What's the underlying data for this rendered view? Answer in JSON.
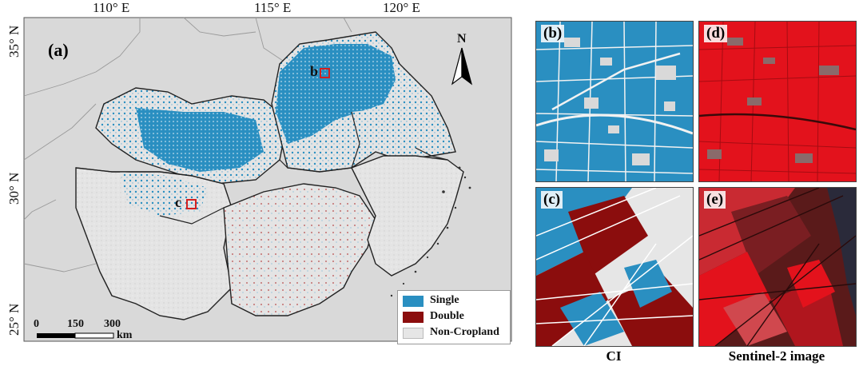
{
  "main_map": {
    "label": "(a)",
    "longitude_labels": [
      "110° E",
      "115° E",
      "120° E"
    ],
    "latitude_labels": [
      "35° N",
      "30° N",
      "25° N"
    ],
    "north_arrow_label": "N",
    "site_labels": [
      "b",
      "c"
    ],
    "legend": [
      {
        "label": "Single",
        "color": "#2a8fc1"
      },
      {
        "label": "Double",
        "color": "#8b0d0d"
      },
      {
        "label": "Non-Cropland",
        "color": "#e6e6e6"
      }
    ],
    "scale_bar": {
      "ticks": [
        "0",
        "150",
        "300"
      ],
      "unit": "km"
    }
  },
  "panels": [
    {
      "label": "(b)",
      "theme": "CI single cropping"
    },
    {
      "label": "(c)",
      "theme": "CI double cropping"
    },
    {
      "label": "(d)",
      "theme": "Sentinel-2 false color"
    },
    {
      "label": "(e)",
      "theme": "Sentinel-2 false color"
    }
  ],
  "captions": {
    "left": "CI",
    "right": "Sentinel-2 image"
  },
  "colors": {
    "single": "#2a8fc1",
    "double": "#8b0d0d",
    "noncrop": "#e6e6e6",
    "background": "#dcdcdc",
    "sentinel": "#e3121c"
  }
}
